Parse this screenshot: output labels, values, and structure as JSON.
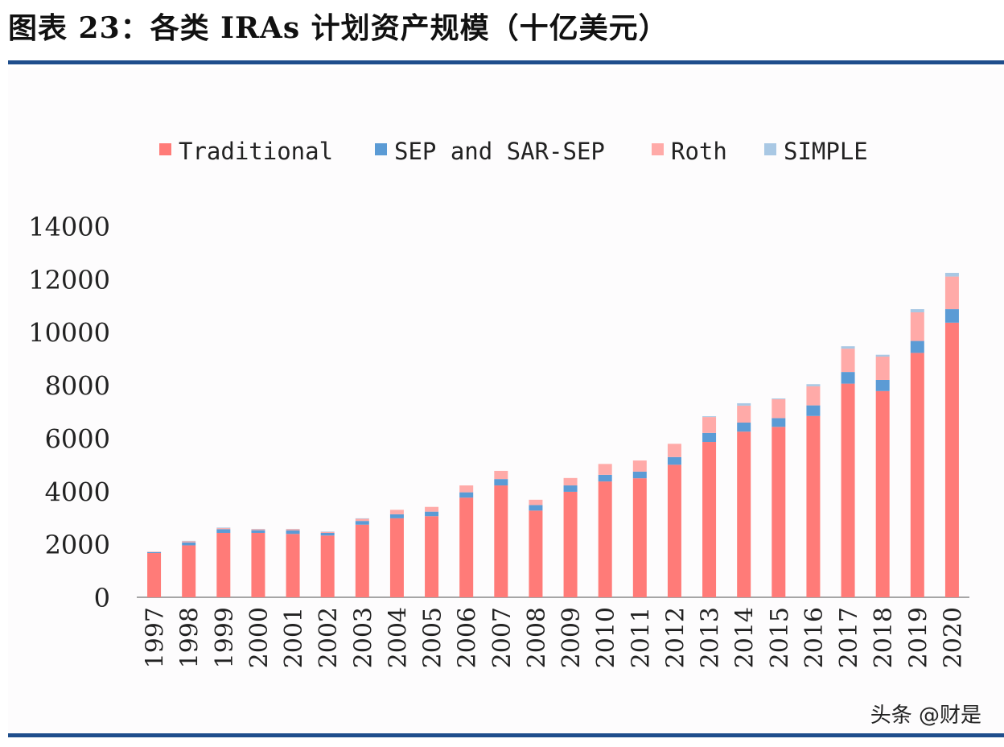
{
  "title": "图表 23：各类 IRAs 计划资产规模（十亿美元）",
  "watermark": "头条 @财是",
  "colors": {
    "rule": "#1f4e8c"
  },
  "chart_data": {
    "type": "bar",
    "stacked": true,
    "title": "",
    "xlabel": "",
    "ylabel": "",
    "ylim": [
      0,
      14000
    ],
    "yticks": [
      0,
      2000,
      4000,
      6000,
      8000,
      10000,
      12000,
      14000
    ],
    "grid": false,
    "legend_position": "top",
    "categories": [
      "1997",
      "1998",
      "1999",
      "2000",
      "2001",
      "2002",
      "2003",
      "2004",
      "2005",
      "2006",
      "2007",
      "2008",
      "2009",
      "2010",
      "2011",
      "2012",
      "2013",
      "2014",
      "2015",
      "2016",
      "2017",
      "2018",
      "2019",
      "2020"
    ],
    "series": [
      {
        "name": "Traditional",
        "color": "#ff7b78",
        "values": [
          1670,
          1960,
          2430,
          2430,
          2390,
          2330,
          2740,
          2980,
          3060,
          3760,
          4220,
          3270,
          3980,
          4370,
          4490,
          5000,
          5860,
          6250,
          6430,
          6840,
          8060,
          7780,
          9220,
          10360
        ]
      },
      {
        "name": "SEP and SAR-SEP",
        "color": "#5b9bd5",
        "values": [
          40,
          110,
          140,
          100,
          130,
          100,
          140,
          150,
          170,
          200,
          240,
          210,
          240,
          250,
          250,
          290,
          340,
          340,
          330,
          400,
          440,
          420,
          450,
          510
        ]
      },
      {
        "name": "Roth",
        "color": "#ffaaa8",
        "values": [
          10,
          40,
          40,
          40,
          50,
          40,
          80,
          170,
          180,
          260,
          310,
          200,
          280,
          410,
          420,
          500,
          600,
          640,
          710,
          720,
          880,
          880,
          1080,
          1230
        ]
      },
      {
        "name": "SIMPLE",
        "color": "#a9c8e4",
        "values": [
          0,
          20,
          20,
          10,
          10,
          10,
          20,
          0,
          0,
          0,
          0,
          0,
          0,
          0,
          0,
          0,
          30,
          90,
          30,
          80,
          90,
          70,
          120,
          140
        ]
      }
    ]
  }
}
